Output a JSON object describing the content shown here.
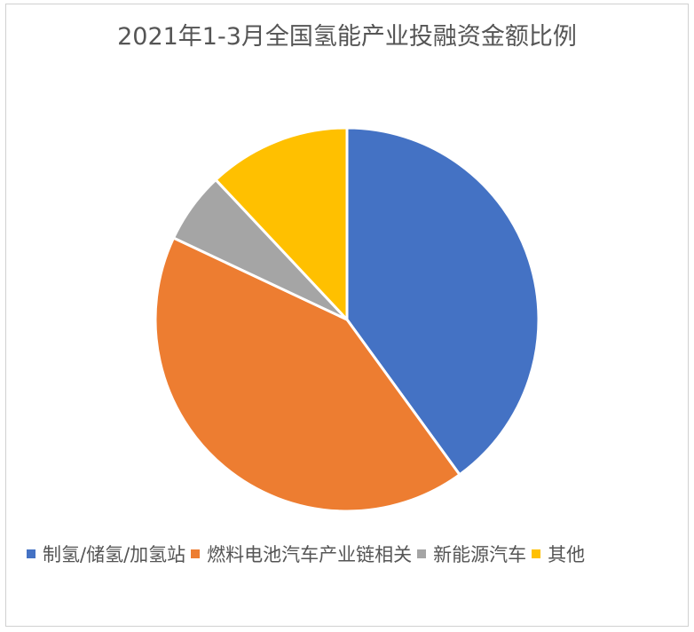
{
  "chart_data": {
    "type": "pie",
    "title": "2021年1-3月全国氢能产业投融资金额比例",
    "categories": [
      "制氢/储氢/加氢站",
      "燃料电池汽车产业链相关",
      "新能源汽车",
      "其他"
    ],
    "values": [
      40,
      42,
      6,
      12
    ],
    "unit": "%",
    "colors": [
      "#4472c4",
      "#ed7d31",
      "#a5a5a5",
      "#ffc000"
    ],
    "start_angle": "12 o'clock",
    "direction": "clockwise",
    "legend_position": "bottom"
  }
}
